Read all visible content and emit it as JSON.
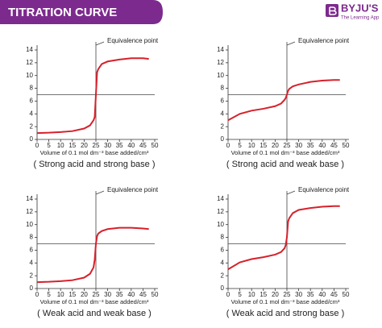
{
  "header": {
    "title": "TITRATION CURVE",
    "logo": "BYJU'S",
    "tagline": "The Learning App"
  },
  "chart_data": [
    {
      "type": "line",
      "caption": "( Strong acid and strong base )",
      "x_label": "Volume of 0.1 mol dm⁻³ base added/cm³",
      "annotation": "Equivalence point",
      "x": [
        0,
        5,
        10,
        15,
        20,
        22.5,
        24,
        24.5,
        25,
        25.5,
        26,
        27.5,
        30,
        35,
        40,
        45,
        47.5
      ],
      "series": [
        {
          "color": "#d7202b",
          "values": [
            1,
            1.05,
            1.15,
            1.3,
            1.7,
            2.2,
            3,
            3.5,
            7,
            10.5,
            11,
            11.8,
            12.2,
            12.5,
            12.7,
            12.7,
            12.6
          ]
        }
      ],
      "hline": 7,
      "vline": 25,
      "xlim": [
        0,
        50
      ],
      "ylim": [
        0,
        14
      ],
      "xticks": [
        0,
        5,
        10,
        15,
        20,
        25,
        30,
        35,
        40,
        45,
        50
      ],
      "yticks": [
        0,
        2,
        4,
        6,
        8,
        10,
        12,
        14
      ]
    },
    {
      "type": "line",
      "caption": "( Strong acid and weak base )",
      "x_label": "Volume of 0.1 mol dm⁻³ base added/cm³",
      "annotation": "Equivalence point",
      "x": [
        0,
        5,
        10,
        15,
        20,
        22.5,
        24,
        24.5,
        25,
        25.5,
        26,
        27.5,
        30,
        35,
        40,
        45,
        47.5
      ],
      "series": [
        {
          "color": "#d7202b",
          "values": [
            3,
            4,
            4.5,
            4.8,
            5.2,
            5.6,
            6.2,
            6.5,
            7,
            7.6,
            7.9,
            8.3,
            8.6,
            9,
            9.2,
            9.3,
            9.3
          ]
        }
      ],
      "hline": 7,
      "vline": 25,
      "xlim": [
        0,
        50
      ],
      "ylim": [
        0,
        14
      ],
      "xticks": [
        0,
        5,
        10,
        15,
        20,
        25,
        30,
        35,
        40,
        45,
        50
      ],
      "yticks": [
        0,
        2,
        4,
        6,
        8,
        10,
        12,
        14
      ]
    },
    {
      "type": "line",
      "caption": "( Weak acid and weak base )",
      "x_label": "Volume of 0.1 mol dm⁻³ base added/cm³",
      "annotation": "Equivalence point",
      "x": [
        0,
        5,
        10,
        15,
        20,
        22.5,
        24,
        24.5,
        25,
        25.5,
        26,
        27.5,
        30,
        35,
        40,
        45,
        47.5
      ],
      "series": [
        {
          "color": "#d7202b",
          "values": [
            1,
            1.05,
            1.15,
            1.3,
            1.7,
            2.3,
            3.3,
            4.5,
            7,
            8.2,
            8.6,
            9,
            9.3,
            9.5,
            9.5,
            9.4,
            9.3
          ]
        }
      ],
      "hline": 7,
      "vline": 25,
      "xlim": [
        0,
        50
      ],
      "ylim": [
        0,
        14
      ],
      "xticks": [
        0,
        5,
        10,
        15,
        20,
        25,
        30,
        35,
        40,
        45,
        50
      ],
      "yticks": [
        0,
        2,
        4,
        6,
        8,
        10,
        12,
        14
      ]
    },
    {
      "type": "line",
      "caption": "( Weak acid and strong base )",
      "x_label": "Volume of 0.1 mol dm⁻³ base added/cm³",
      "annotation": "Equivalence point",
      "x": [
        0,
        5,
        10,
        15,
        20,
        22.5,
        24,
        24.5,
        25,
        25.5,
        26,
        27.5,
        30,
        35,
        40,
        45,
        47.5
      ],
      "series": [
        {
          "color": "#d7202b",
          "values": [
            3,
            4.1,
            4.6,
            4.9,
            5.3,
            5.7,
            6.3,
            6.8,
            8,
            10.5,
            11,
            11.8,
            12.3,
            12.6,
            12.8,
            12.9,
            12.9
          ]
        }
      ],
      "hline": 7,
      "vline": 25,
      "xlim": [
        0,
        50
      ],
      "ylim": [
        0,
        14
      ],
      "xticks": [
        0,
        5,
        10,
        15,
        20,
        25,
        30,
        35,
        40,
        45,
        50
      ],
      "yticks": [
        0,
        2,
        4,
        6,
        8,
        10,
        12,
        14
      ]
    }
  ]
}
